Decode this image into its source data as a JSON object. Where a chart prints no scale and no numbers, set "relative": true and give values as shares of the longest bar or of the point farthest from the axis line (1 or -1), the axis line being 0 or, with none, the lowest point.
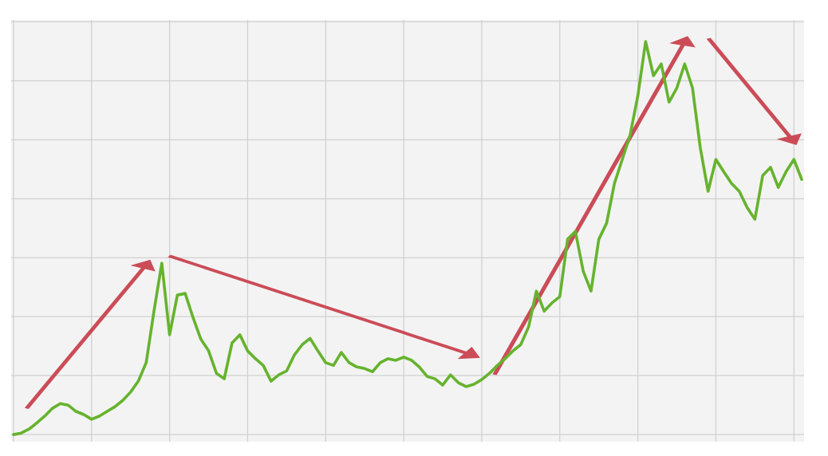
{
  "chart_data": {
    "type": "line",
    "relative": true,
    "grid": true,
    "legend": false,
    "marker": "none",
    "line_style": "solid",
    "categories": [
      null,
      null,
      null,
      null,
      null,
      null,
      null,
      null,
      null,
      null,
      null,
      null,
      null,
      null,
      null,
      null,
      null,
      null,
      null,
      null,
      null,
      null,
      null,
      null,
      null,
      null,
      null,
      null,
      null,
      null,
      null,
      null,
      null,
      null,
      null,
      null,
      null,
      null,
      null,
      null,
      null,
      null,
      null,
      null,
      null,
      null,
      null,
      null,
      null,
      null,
      null,
      null,
      null,
      null,
      null,
      null,
      null,
      null,
      null,
      null,
      null,
      null,
      null,
      null,
      null,
      null,
      null,
      null,
      null,
      null,
      null,
      null,
      null,
      null,
      null,
      null,
      null,
      null,
      null,
      null,
      null,
      null,
      null,
      null,
      null,
      null,
      null,
      null,
      null,
      null,
      null,
      null,
      null,
      null,
      null,
      null,
      null,
      null,
      null,
      null,
      null,
      null
    ],
    "series": [
      {
        "color": "#66b32e",
        "values": [
          0,
          0.004,
          0.014,
          0.03,
          0.047,
          0.067,
          0.079,
          0.075,
          0.059,
          0.051,
          0.039,
          0.047,
          0.059,
          0.071,
          0.087,
          0.108,
          0.136,
          0.183,
          0.314,
          0.436,
          0.254,
          0.355,
          0.359,
          0.298,
          0.243,
          0.213,
          0.156,
          0.142,
          0.233,
          0.254,
          0.213,
          0.193,
          0.176,
          0.136,
          0.152,
          0.162,
          0.203,
          0.229,
          0.245,
          0.213,
          0.183,
          0.176,
          0.209,
          0.183,
          0.172,
          0.168,
          0.16,
          0.183,
          0.193,
          0.189,
          0.197,
          0.189,
          0.172,
          0.148,
          0.142,
          0.126,
          0.152,
          0.132,
          0.122,
          0.128,
          0.14,
          0.156,
          0.176,
          0.193,
          0.213,
          0.229,
          0.274,
          0.365,
          0.314,
          0.335,
          0.351,
          0.497,
          0.517,
          0.416,
          0.365,
          0.497,
          0.538,
          0.639,
          0.7,
          0.761,
          0.862,
          1,
          0.913,
          0.943,
          0.846,
          0.882,
          0.943,
          0.882,
          0.73,
          0.619,
          0.7,
          0.669,
          0.639,
          0.619,
          0.578,
          0.548,
          0.659,
          0.68,
          0.629,
          0.669,
          0.7,
          0.649
        ]
      }
    ]
  }
}
